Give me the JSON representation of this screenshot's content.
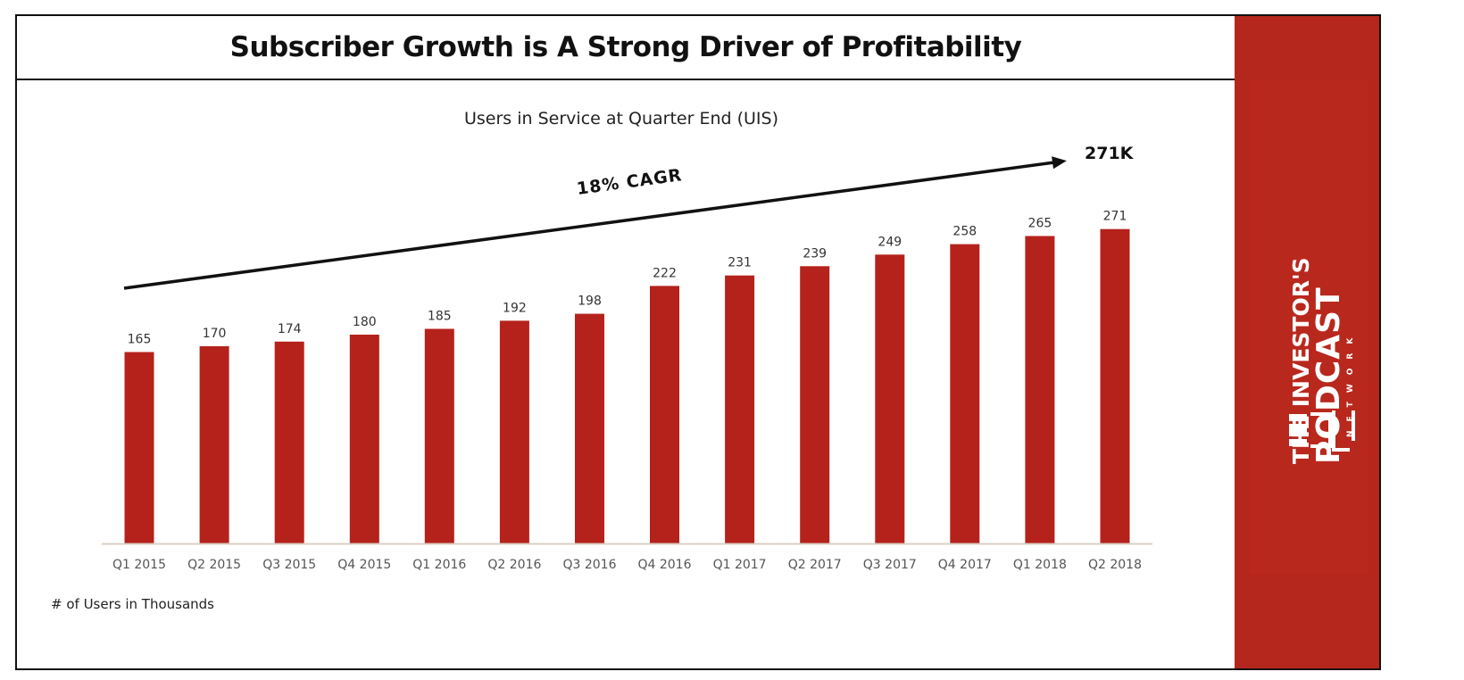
{
  "title": "Subscriber Growth is A Strong Driver of Profitability",
  "logo": {
    "line1": "THE INVESTOR'S",
    "line2": "PODCAST",
    "line3": "NETWORK"
  },
  "chart_data": {
    "type": "bar",
    "title": "Users in Service at Quarter End (UIS)",
    "categories": [
      "Q1 2015",
      "Q2 2015",
      "Q3 2015",
      "Q4 2015",
      "Q1 2016",
      "Q2 2016",
      "Q3 2016",
      "Q4 2016",
      "Q1 2017",
      "Q2 2017",
      "Q3 2017",
      "Q4 2017",
      "Q1 2018",
      "Q2 2018"
    ],
    "values": [
      165,
      170,
      174,
      180,
      185,
      192,
      198,
      222,
      231,
      239,
      249,
      258,
      265,
      271
    ],
    "data_labels": [
      "165",
      "170",
      "174",
      "180",
      "185",
      "192",
      "198",
      "222",
      "231",
      "239",
      "249",
      "258",
      "265",
      "271"
    ],
    "ylim": [
      0,
      271
    ],
    "grid": false,
    "legend": "none",
    "annotations": {
      "trend_label": "18% CAGR",
      "end_label": "271K"
    },
    "colors": {
      "bar": "#b5221b",
      "axis": "#d9cfc4",
      "arrow": "#111111"
    }
  },
  "footnote": "# of Users in Thousands",
  "colors": {
    "brand": "#b5271c",
    "frame": "#111111"
  }
}
